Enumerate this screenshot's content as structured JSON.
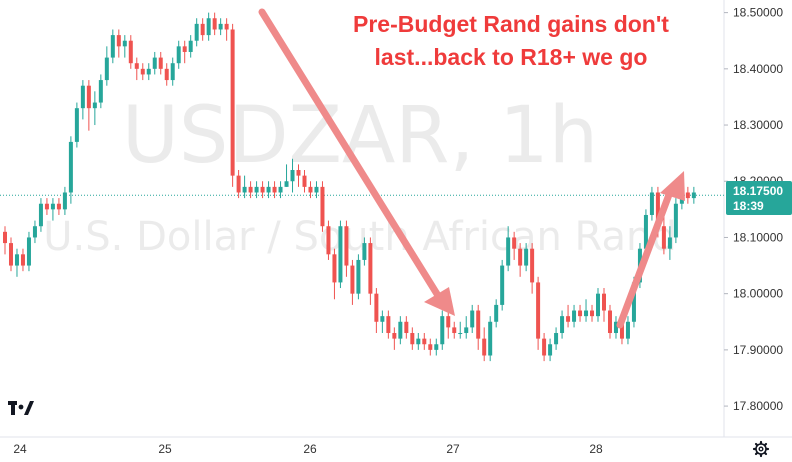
{
  "chart_data": {
    "type": "candlestick",
    "symbol": "USDZAR",
    "interval": "1h",
    "watermark": {
      "symbol": "USDZAR, 1h",
      "description": "U.S. Dollar / South African Rand"
    },
    "annotation": [
      "Pre-Budget Rand gains don't",
      "last...back to R18+ we go"
    ],
    "x_ticks": [
      "24",
      "25",
      "26",
      "27",
      "28"
    ],
    "y_ticks": [
      "18.50000",
      "18.40000",
      "18.30000",
      "18.20000",
      "18.10000",
      "18.00000",
      "17.90000",
      "17.80000"
    ],
    "ylim": [
      17.745,
      18.51
    ],
    "grid": false,
    "last_price": {
      "price": 18.175,
      "label": "18.17500",
      "countdown": "18:39"
    },
    "colors": {
      "up": "#26a69a",
      "down": "#ef5350",
      "arrow": "#ef8a8a",
      "annotation": "#ef3b3b",
      "price_line": "#26a69a"
    },
    "candles": [
      [
        18.11,
        18.09,
        18.12,
        18.07
      ],
      [
        18.09,
        18.05,
        18.1,
        18.04
      ],
      [
        18.05,
        18.07,
        18.08,
        18.03
      ],
      [
        18.07,
        18.05,
        18.08,
        18.04
      ],
      [
        18.05,
        18.1,
        18.11,
        18.04
      ],
      [
        18.1,
        18.12,
        18.13,
        18.09
      ],
      [
        18.12,
        18.16,
        18.17,
        18.11
      ],
      [
        18.16,
        18.15,
        18.17,
        18.14
      ],
      [
        18.15,
        18.16,
        18.17,
        18.13
      ],
      [
        18.16,
        18.15,
        18.17,
        18.14
      ],
      [
        18.15,
        18.18,
        18.19,
        18.14
      ],
      [
        18.18,
        18.27,
        18.28,
        18.16
      ],
      [
        18.27,
        18.33,
        18.34,
        18.26
      ],
      [
        18.33,
        18.37,
        18.38,
        18.31
      ],
      [
        18.37,
        18.33,
        18.38,
        18.29
      ],
      [
        18.33,
        18.34,
        18.36,
        18.3
      ],
      [
        18.34,
        18.38,
        18.39,
        18.33
      ],
      [
        18.38,
        18.42,
        18.44,
        18.37
      ],
      [
        18.42,
        18.46,
        18.47,
        18.41
      ],
      [
        18.46,
        18.44,
        18.47,
        18.42
      ],
      [
        18.44,
        18.45,
        18.46,
        18.42
      ],
      [
        18.45,
        18.41,
        18.46,
        18.4
      ],
      [
        18.41,
        18.4,
        18.42,
        18.38
      ],
      [
        18.4,
        18.39,
        18.41,
        18.38
      ],
      [
        18.39,
        18.4,
        18.41,
        18.38
      ],
      [
        18.4,
        18.42,
        18.43,
        18.39
      ],
      [
        18.42,
        18.4,
        18.43,
        18.39
      ],
      [
        18.4,
        18.38,
        18.41,
        18.37
      ],
      [
        18.38,
        18.41,
        18.42,
        18.37
      ],
      [
        18.41,
        18.44,
        18.45,
        18.4
      ],
      [
        18.44,
        18.43,
        18.45,
        18.41
      ],
      [
        18.43,
        18.45,
        18.46,
        18.42
      ],
      [
        18.45,
        18.48,
        18.49,
        18.44
      ],
      [
        18.48,
        18.46,
        18.49,
        18.45
      ],
      [
        18.46,
        18.49,
        18.5,
        18.45
      ],
      [
        18.49,
        18.47,
        18.5,
        18.46
      ],
      [
        18.47,
        18.48,
        18.49,
        18.46
      ],
      [
        18.48,
        18.47,
        18.49,
        18.45
      ],
      [
        18.47,
        18.21,
        18.48,
        18.19
      ],
      [
        18.21,
        18.18,
        18.22,
        18.17
      ],
      [
        18.18,
        18.19,
        18.21,
        18.17
      ],
      [
        18.19,
        18.18,
        18.2,
        18.17
      ],
      [
        18.18,
        18.19,
        18.2,
        18.17
      ],
      [
        18.19,
        18.18,
        18.2,
        18.17
      ],
      [
        18.18,
        18.19,
        18.2,
        18.17
      ],
      [
        18.19,
        18.18,
        18.2,
        18.17
      ],
      [
        18.18,
        18.19,
        18.2,
        18.17
      ],
      [
        18.19,
        18.2,
        18.23,
        18.19
      ],
      [
        18.2,
        18.22,
        18.24,
        18.18
      ],
      [
        18.22,
        18.21,
        18.23,
        18.19
      ],
      [
        18.21,
        18.19,
        18.22,
        18.18
      ],
      [
        18.19,
        18.18,
        18.2,
        18.17
      ],
      [
        18.18,
        18.19,
        18.2,
        18.17
      ],
      [
        18.19,
        18.12,
        18.2,
        18.11
      ],
      [
        18.12,
        18.07,
        18.13,
        18.06
      ],
      [
        18.07,
        18.02,
        18.08,
        17.99
      ],
      [
        18.02,
        18.12,
        18.13,
        18.01
      ],
      [
        18.12,
        18.05,
        18.13,
        18.03
      ],
      [
        18.05,
        18.0,
        18.06,
        17.98
      ],
      [
        18.0,
        18.06,
        18.07,
        17.99
      ],
      [
        18.06,
        18.09,
        18.1,
        18.05
      ],
      [
        18.09,
        18.0,
        18.1,
        17.98
      ],
      [
        18.0,
        17.95,
        18.01,
        17.93
      ],
      [
        17.95,
        17.96,
        17.97,
        17.93
      ],
      [
        17.96,
        17.93,
        17.97,
        17.92
      ],
      [
        17.93,
        17.92,
        17.94,
        17.9
      ],
      [
        17.92,
        17.95,
        17.96,
        17.91
      ],
      [
        17.95,
        17.93,
        17.96,
        17.92
      ],
      [
        17.93,
        17.91,
        17.94,
        17.9
      ],
      [
        17.91,
        17.92,
        17.93,
        17.9
      ],
      [
        17.92,
        17.91,
        17.93,
        17.9
      ],
      [
        17.91,
        17.9,
        17.92,
        17.89
      ],
      [
        17.9,
        17.91,
        17.92,
        17.89
      ],
      [
        17.91,
        17.96,
        17.97,
        17.9
      ],
      [
        17.96,
        17.94,
        17.97,
        17.92
      ],
      [
        17.94,
        17.93,
        17.95,
        17.92
      ],
      [
        17.93,
        17.93,
        17.95,
        17.92
      ],
      [
        17.93,
        17.94,
        17.96,
        17.92
      ],
      [
        17.94,
        17.97,
        17.98,
        17.93
      ],
      [
        17.97,
        17.92,
        17.98,
        17.9
      ],
      [
        17.92,
        17.89,
        17.94,
        17.88
      ],
      [
        17.89,
        17.95,
        17.96,
        17.88
      ],
      [
        17.95,
        17.98,
        17.99,
        17.94
      ],
      [
        17.98,
        18.05,
        18.06,
        17.97
      ],
      [
        18.05,
        18.1,
        18.12,
        18.04
      ],
      [
        18.1,
        18.08,
        18.11,
        18.06
      ],
      [
        18.08,
        18.05,
        18.09,
        18.03
      ],
      [
        18.05,
        18.08,
        18.09,
        18.04
      ],
      [
        18.08,
        18.02,
        18.09,
        18.0
      ],
      [
        18.02,
        17.92,
        18.03,
        17.9
      ],
      [
        17.92,
        17.89,
        17.93,
        17.88
      ],
      [
        17.89,
        17.91,
        17.92,
        17.88
      ],
      [
        17.91,
        17.93,
        17.94,
        17.9
      ],
      [
        17.93,
        17.96,
        17.97,
        17.92
      ],
      [
        17.96,
        17.95,
        17.98,
        17.94
      ],
      [
        17.95,
        17.97,
        17.98,
        17.94
      ],
      [
        17.97,
        17.96,
        17.98,
        17.95
      ],
      [
        17.96,
        17.97,
        17.99,
        17.95
      ],
      [
        17.97,
        17.96,
        17.98,
        17.95
      ],
      [
        17.96,
        18.0,
        18.01,
        17.95
      ],
      [
        18.0,
        17.97,
        18.01,
        17.95
      ],
      [
        17.97,
        17.93,
        17.98,
        17.92
      ],
      [
        17.93,
        17.95,
        17.96,
        17.92
      ],
      [
        17.95,
        17.92,
        17.96,
        17.91
      ],
      [
        17.92,
        17.95,
        17.96,
        17.91
      ],
      [
        17.95,
        18.02,
        18.03,
        17.94
      ],
      [
        18.02,
        18.08,
        18.09,
        18.01
      ],
      [
        18.08,
        18.14,
        18.15,
        18.07
      ],
      [
        18.14,
        18.18,
        18.19,
        18.13
      ],
      [
        18.18,
        18.12,
        18.19,
        18.1
      ],
      [
        18.12,
        18.08,
        18.14,
        18.07
      ],
      [
        18.08,
        18.1,
        18.12,
        18.06
      ],
      [
        18.1,
        18.16,
        18.17,
        18.09
      ],
      [
        18.16,
        18.18,
        18.19,
        18.15
      ],
      [
        18.18,
        18.17,
        18.19,
        18.16
      ],
      [
        18.17,
        18.18,
        18.19,
        18.16
      ]
    ]
  }
}
